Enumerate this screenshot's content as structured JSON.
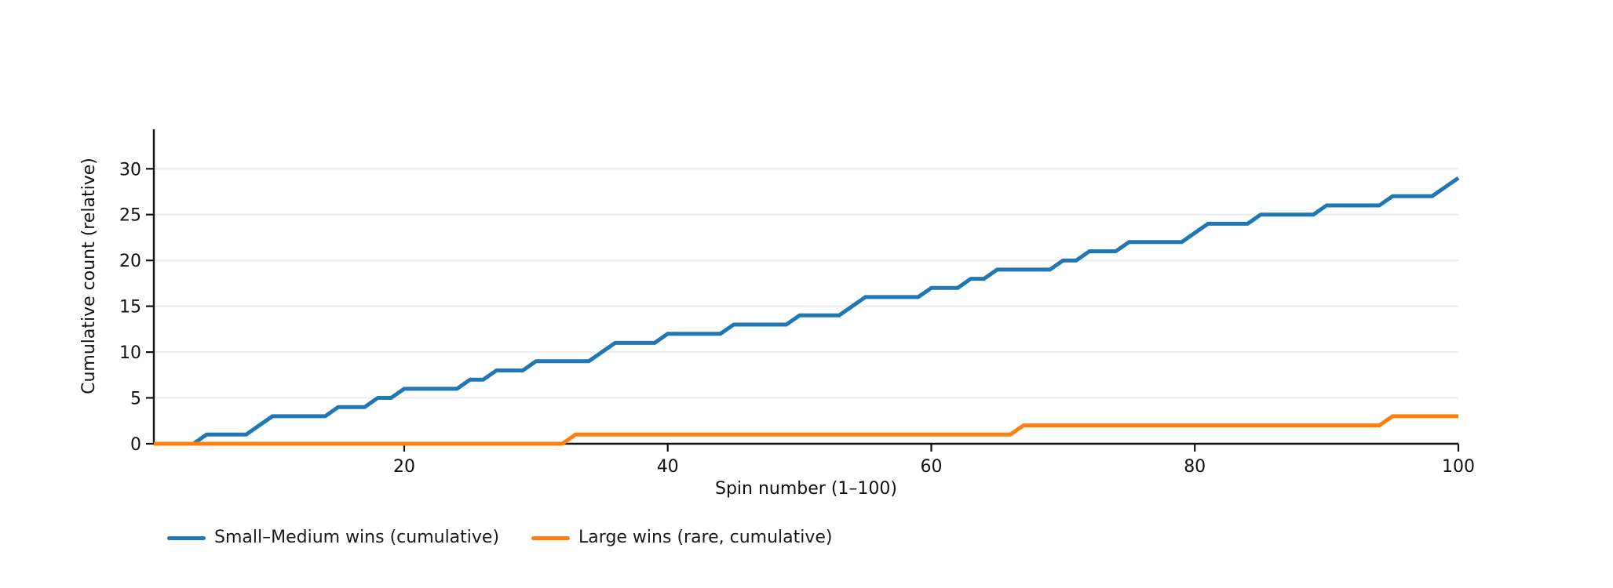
{
  "chart_data": {
    "type": "line",
    "subtype": "cumulative-step",
    "title": "",
    "xlabel": "Spin number (1–100)",
    "ylabel": "Cumulative count (relative)",
    "xlim": [
      1,
      100
    ],
    "ylim": [
      0,
      34.3
    ],
    "x_ticks": [
      20,
      40,
      60,
      80,
      100
    ],
    "y_ticks": [
      0,
      5,
      10,
      15,
      20,
      25,
      30
    ],
    "grid": "horizontal",
    "grid_color": "#ececec",
    "axis_color": "#111111",
    "background_color": "#ffffff",
    "legend_position": "bottom-left-outside",
    "x": [
      1,
      2,
      3,
      4,
      5,
      6,
      7,
      8,
      9,
      10,
      11,
      12,
      13,
      14,
      15,
      16,
      17,
      18,
      19,
      20,
      21,
      22,
      23,
      24,
      25,
      26,
      27,
      28,
      29,
      30,
      31,
      32,
      33,
      34,
      35,
      36,
      37,
      38,
      39,
      40,
      41,
      42,
      43,
      44,
      45,
      46,
      47,
      48,
      49,
      50,
      51,
      52,
      53,
      54,
      55,
      56,
      57,
      58,
      59,
      60,
      61,
      62,
      63,
      64,
      65,
      66,
      67,
      68,
      69,
      70,
      71,
      72,
      73,
      74,
      75,
      76,
      77,
      78,
      79,
      80,
      81,
      82,
      83,
      84,
      85,
      86,
      87,
      88,
      89,
      90,
      91,
      92,
      93,
      94,
      95,
      96,
      97,
      98,
      99,
      100
    ],
    "series": [
      {
        "name": "Small–Medium wins (cumulative)",
        "color": "#1f77b4",
        "line_width": 5,
        "values": [
          0,
          0,
          0,
          0,
          1,
          1,
          1,
          1,
          2,
          3,
          3,
          3,
          3,
          3,
          4,
          4,
          4,
          5,
          5,
          6,
          6,
          6,
          6,
          6,
          7,
          7,
          8,
          8,
          8,
          9,
          9,
          9,
          9,
          9,
          10,
          11,
          11,
          11,
          11,
          12,
          12,
          12,
          12,
          12,
          13,
          13,
          13,
          13,
          13,
          14,
          14,
          14,
          14,
          15,
          16,
          16,
          16,
          16,
          16,
          17,
          17,
          17,
          18,
          18,
          19,
          19,
          19,
          19,
          19,
          20,
          20,
          21,
          21,
          21,
          22,
          22,
          22,
          22,
          22,
          23,
          24,
          24,
          24,
          24,
          25,
          25,
          25,
          25,
          25,
          26,
          26,
          26,
          26,
          26,
          27,
          27,
          27,
          27,
          28,
          29
        ]
      },
      {
        "name": "Large wins (rare, cumulative)",
        "color": "#ff7f0e",
        "line_width": 5,
        "values": [
          0,
          0,
          0,
          0,
          0,
          0,
          0,
          0,
          0,
          0,
          0,
          0,
          0,
          0,
          0,
          0,
          0,
          0,
          0,
          0,
          0,
          0,
          0,
          0,
          0,
          0,
          0,
          0,
          0,
          0,
          0,
          0,
          1,
          1,
          1,
          1,
          1,
          1,
          1,
          1,
          1,
          1,
          1,
          1,
          1,
          1,
          1,
          1,
          1,
          1,
          1,
          1,
          1,
          1,
          1,
          1,
          1,
          1,
          1,
          1,
          1,
          1,
          1,
          1,
          1,
          1,
          2,
          2,
          2,
          2,
          2,
          2,
          2,
          2,
          2,
          2,
          2,
          2,
          2,
          2,
          2,
          2,
          2,
          2,
          2,
          2,
          2,
          2,
          2,
          2,
          2,
          2,
          2,
          2,
          3,
          3,
          3,
          3,
          3,
          3
        ]
      }
    ]
  },
  "legend": {
    "items": [
      {
        "label": "Small–Medium wins (cumulative)",
        "color": "#1f77b4"
      },
      {
        "label": "Large wins (rare, cumulative)",
        "color": "#ff7f0e"
      }
    ]
  }
}
